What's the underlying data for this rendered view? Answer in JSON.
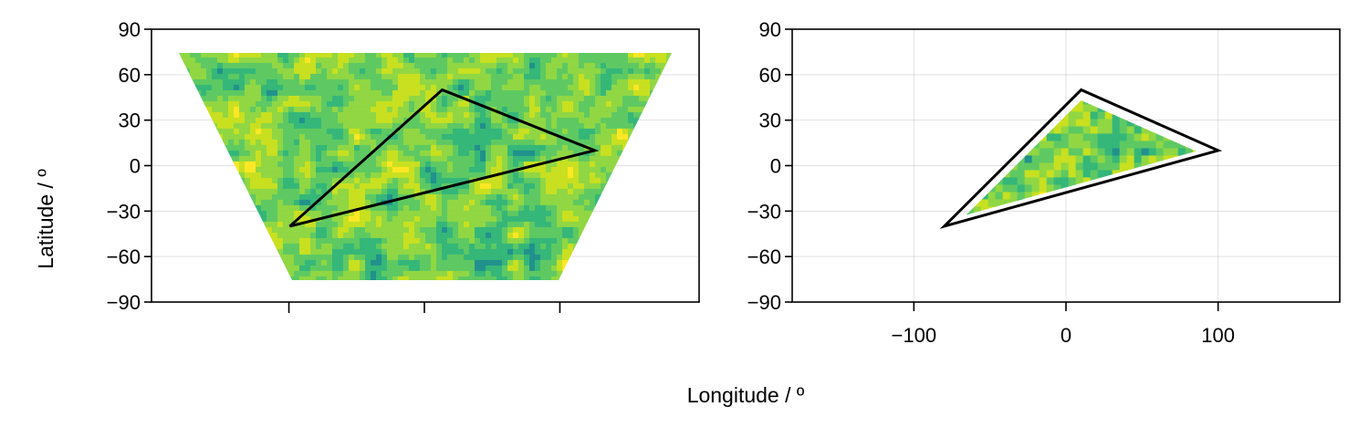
{
  "chart_data": [
    {
      "type": "heatmap",
      "panel": "left",
      "description_of_marks": "filled contour of random field over a trapezoid-shaped domain, with triangle polygon outline",
      "ylim": [
        -90,
        90
      ],
      "yticks": [
        90,
        60,
        30,
        0,
        -30,
        -60,
        -90
      ],
      "xtick_values": [
        -80,
        0,
        80
      ],
      "xtick_labels": [
        "",
        "",
        ""
      ],
      "grid": true,
      "field_extent": {
        "lat": [
          -75,
          75
        ]
      },
      "polygon": [
        [
          -80,
          -40
        ],
        [
          10,
          50
        ],
        [
          100,
          10
        ]
      ],
      "ylabel": "Latitude / º",
      "colors": [
        "#21918c",
        "#35b779",
        "#5ec962",
        "#90d743",
        "#c8e020",
        "#fde725"
      ]
    },
    {
      "type": "heatmap",
      "panel": "right",
      "description_of_marks": "filled contour clipped to the triangle polygon",
      "xlim": [
        -180,
        180
      ],
      "ylim": [
        -90,
        90
      ],
      "xticks": [
        -100,
        0,
        100
      ],
      "yticks": [
        90,
        60,
        30,
        0,
        -30,
        -60,
        -90
      ],
      "grid": true,
      "polygon": [
        [
          -80,
          -40
        ],
        [
          10,
          50
        ],
        [
          100,
          10
        ]
      ],
      "xlabel": "Longitude / º",
      "colors": [
        "#21918c",
        "#35b779",
        "#5ec962",
        "#90d743",
        "#c8e020",
        "#fde725"
      ]
    }
  ],
  "labels": {
    "xlabel": "Longitude / º",
    "ylabel": "Latitude / º"
  },
  "ytick_labels": [
    "90",
    "60",
    "30",
    "0",
    "−30",
    "−60",
    "−90"
  ],
  "xtick_labels_right": [
    "−100",
    "0",
    "100"
  ]
}
